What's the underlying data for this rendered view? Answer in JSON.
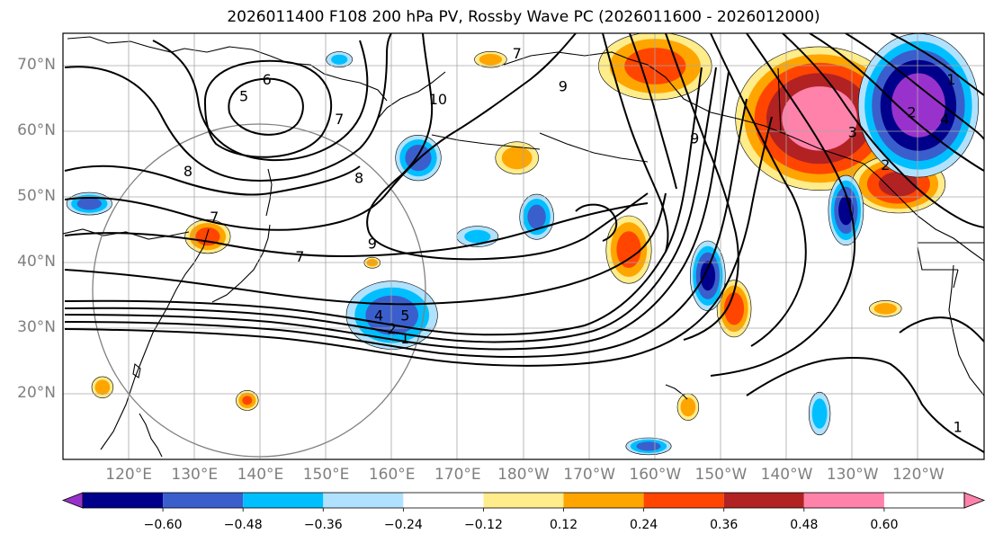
{
  "title": "2026011400 F108 200 hPa PV, Rossby Wave PC (2026011600 - 2026012000)",
  "map": {
    "region": "North Pacific, 110°E to 110°W, 10°N to 75°N",
    "lon_min": 110,
    "lon_max": 250,
    "lat_min": 10,
    "lat_max": 75,
    "lat_ticks": [
      {
        "label": "70°N",
        "lat": 70
      },
      {
        "label": "60°N",
        "lat": 60
      },
      {
        "label": "50°N",
        "lat": 50
      },
      {
        "label": "40°N",
        "lat": 40
      },
      {
        "label": "30°N",
        "lat": 30
      },
      {
        "label": "20°N",
        "lat": 20
      }
    ],
    "lon_ticks": [
      {
        "label": "120°E",
        "lon": 120
      },
      {
        "label": "130°E",
        "lon": 130
      },
      {
        "label": "140°E",
        "lon": 140
      },
      {
        "label": "150°E",
        "lon": 150
      },
      {
        "label": "160°E",
        "lon": 160
      },
      {
        "label": "170°E",
        "lon": 170
      },
      {
        "label": "180°W",
        "lon": 180
      },
      {
        "label": "170°W",
        "lon": 190
      },
      {
        "label": "160°W",
        "lon": 200
      },
      {
        "label": "150°W",
        "lon": 210
      },
      {
        "label": "140°W",
        "lon": 220
      },
      {
        "label": "130°W",
        "lon": 230
      },
      {
        "label": "120°W",
        "lon": 240
      }
    ],
    "contour_labels": [
      {
        "text": "6",
        "lon": 141,
        "lat": 68
      },
      {
        "text": "5",
        "lon": 137.5,
        "lat": 65.5
      },
      {
        "text": "7",
        "lon": 152,
        "lat": 62
      },
      {
        "text": "8",
        "lon": 129,
        "lat": 54
      },
      {
        "text": "8",
        "lon": 155,
        "lat": 53
      },
      {
        "text": "10",
        "lon": 167,
        "lat": 65
      },
      {
        "text": "9",
        "lon": 186,
        "lat": 67
      },
      {
        "text": "7",
        "lon": 133,
        "lat": 47
      },
      {
        "text": "7",
        "lon": 146,
        "lat": 41
      },
      {
        "text": "9",
        "lon": 157,
        "lat": 43
      },
      {
        "text": "4",
        "lon": 158,
        "lat": 32
      },
      {
        "text": "5",
        "lon": 162,
        "lat": 32
      },
      {
        "text": "2",
        "lon": 160,
        "lat": 30
      },
      {
        "text": "1",
        "lon": 162,
        "lat": 28.5
      },
      {
        "text": "7",
        "lon": 179,
        "lat": 72
      },
      {
        "text": "9",
        "lon": 206,
        "lat": 59
      },
      {
        "text": "3",
        "lon": 230,
        "lat": 60
      },
      {
        "text": "2",
        "lon": 239,
        "lat": 63
      },
      {
        "text": "4",
        "lon": 244,
        "lat": 62
      },
      {
        "text": "1",
        "lon": 245,
        "lat": 68
      },
      {
        "text": "2",
        "lon": 235,
        "lat": 55
      },
      {
        "text": "1",
        "lon": 246,
        "lat": 15
      }
    ],
    "circle": {
      "center_lon": 140,
      "center_lat": 36,
      "radius_deg": 25
    }
  },
  "chart_data": {
    "type": "heatmap",
    "shaded_field": "Rossby Wave PC",
    "contour_field": "200 hPa PV",
    "colorbar": {
      "ticks": [
        -0.6,
        -0.48,
        -0.36,
        -0.24,
        -0.12,
        0.12,
        0.24,
        0.36,
        0.48,
        0.6
      ],
      "tick_labels": [
        "−0.60",
        "−0.48",
        "−0.36",
        "−0.24",
        "−0.12",
        "0.12",
        "0.24",
        "0.36",
        "0.48",
        "0.60"
      ],
      "colors": [
        "#9932cc",
        "#00008b",
        "#3a5fcd",
        "#00bfff",
        "#b0e2ff",
        "#ffffff",
        "#ffec8b",
        "#ffa500",
        "#ff4500",
        "#b22222",
        "#ff82ab"
      ],
      "extend": "both"
    },
    "anomalies": [
      {
        "lon": 225,
        "lat": 62,
        "rx": 14,
        "ry": 12,
        "value": 0.66
      },
      {
        "lon": 200,
        "lat": 70,
        "rx": 10,
        "ry": 6,
        "value": 0.4
      },
      {
        "lon": 237,
        "lat": 52,
        "rx": 8,
        "ry": 5,
        "value": 0.5
      },
      {
        "lon": 240,
        "lat": 64,
        "rx": 10,
        "ry": 12,
        "value": -0.66
      },
      {
        "lon": 229,
        "lat": 48,
        "rx": 3,
        "ry": 6,
        "value": -0.5
      },
      {
        "lon": 212,
        "lat": 33,
        "rx": 3,
        "ry": 5,
        "value": 0.42
      },
      {
        "lon": 196,
        "lat": 42,
        "rx": 4,
        "ry": 6,
        "value": 0.4
      },
      {
        "lon": 208,
        "lat": 38,
        "rx": 3,
        "ry": 6,
        "value": -0.5
      },
      {
        "lon": 182,
        "lat": 47,
        "rx": 3,
        "ry": 4,
        "value": -0.4
      },
      {
        "lon": 173,
        "lat": 44,
        "rx": 4,
        "ry": 2,
        "value": -0.26
      },
      {
        "lon": 160,
        "lat": 32,
        "rx": 8,
        "ry": 6,
        "value": -0.42
      },
      {
        "lon": 179,
        "lat": 56,
        "rx": 4,
        "ry": 3,
        "value": 0.3
      },
      {
        "lon": 164,
        "lat": 56,
        "rx": 4,
        "ry": 4,
        "value": -0.42
      },
      {
        "lon": 132,
        "lat": 44,
        "rx": 4,
        "ry": 3,
        "value": 0.4
      },
      {
        "lon": 114,
        "lat": 49,
        "rx": 4,
        "ry": 2,
        "value": -0.4
      },
      {
        "lon": 152,
        "lat": 71,
        "rx": 2.5,
        "ry": 1.5,
        "value": -0.26
      },
      {
        "lon": 175,
        "lat": 71,
        "rx": 3,
        "ry": 1.5,
        "value": 0.3
      },
      {
        "lon": 205,
        "lat": 18,
        "rx": 2,
        "ry": 2.5,
        "value": 0.3
      },
      {
        "lon": 225,
        "lat": 17,
        "rx": 2,
        "ry": 4,
        "value": -0.3
      },
      {
        "lon": 138,
        "lat": 19,
        "rx": 2,
        "ry": 1.8,
        "value": 0.36
      },
      {
        "lon": 116,
        "lat": 21,
        "rx": 2,
        "ry": 2,
        "value": 0.3
      },
      {
        "lon": 199,
        "lat": 12,
        "rx": 4,
        "ry": 1.5,
        "value": -0.4
      },
      {
        "lon": 235,
        "lat": 33,
        "rx": 3,
        "ry": 1.5,
        "value": 0.3
      },
      {
        "lon": 157,
        "lat": 40,
        "rx": 1.5,
        "ry": 1,
        "value": 0.3
      }
    ]
  }
}
